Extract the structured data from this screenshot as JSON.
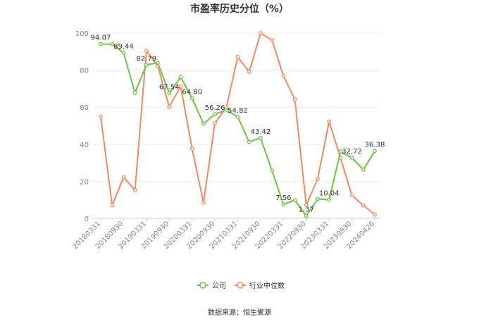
{
  "chart_data": {
    "type": "line",
    "title": "市盈率历史分位（%）",
    "ylim": [
      0,
      100
    ],
    "yticks": [
      0,
      20,
      40,
      60,
      80,
      100
    ],
    "x": [
      "20180331",
      "20180630",
      "20180930",
      "20181231",
      "20190331",
      "20190630",
      "20190930",
      "20191231",
      "20200331",
      "20200630",
      "20200930",
      "20201231",
      "20210331",
      "20210630",
      "20210930",
      "20211231",
      "20220331",
      "20220630",
      "20220930",
      "20221231",
      "20230331",
      "20230630",
      "20230930",
      "20231231",
      "20240426"
    ],
    "x_tick_labels": [
      "20180331",
      "20180930",
      "20190331",
      "20190930",
      "20200331",
      "20200930",
      "20210331",
      "20210930",
      "20220331",
      "20220930",
      "20230331",
      "20230930",
      "20240426"
    ],
    "series": [
      {
        "name": "公司",
        "color": "#6cc444",
        "values": [
          94.07,
          94.0,
          89.44,
          67.8,
          82.79,
          84.0,
          67.54,
          76.2,
          64.8,
          51.0,
          56.26,
          58.5,
          54.82,
          41.3,
          43.42,
          25.8,
          7.56,
          9.8,
          1.37,
          10.5,
          10.04,
          36.0,
          32.72,
          26.3,
          36.38
        ],
        "labels": {
          "0": "94.07",
          "2": "89.44",
          "4": "82.79",
          "6": "67.54",
          "8": "64.80",
          "10": "56.26",
          "12": "54.82",
          "14": "43.42",
          "16": "7.56",
          "18": "1.37",
          "20": "10.04",
          "22": "32.72",
          "24": "36.38"
        }
      },
      {
        "name": "行业中位数",
        "color": "#f5895e",
        "values": [
          55.0,
          7.0,
          22.2,
          15.2,
          90.4,
          82.2,
          60.2,
          71.3,
          37.6,
          8.5,
          51.4,
          59.8,
          87.2,
          79.1,
          100.0,
          96.2,
          77.0,
          64.2,
          7.2,
          21.3,
          52.3,
          32.6,
          12.4,
          7.0,
          2.0
        ]
      }
    ],
    "legend_position": "bottom",
    "grid": true
  },
  "source_text": "数据来源：恒生聚源"
}
